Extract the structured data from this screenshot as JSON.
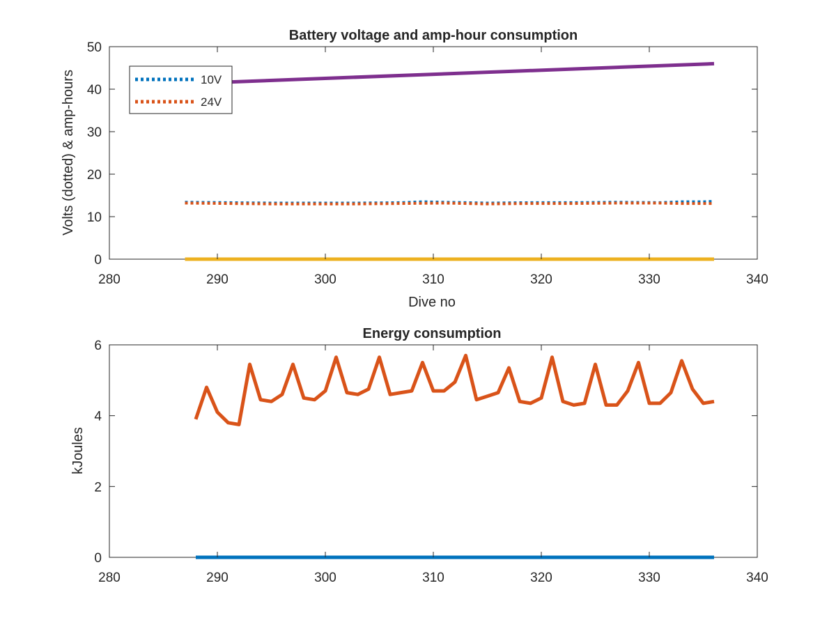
{
  "chart_data": [
    {
      "type": "line",
      "title": "Battery voltage and amp-hour consumption",
      "xlabel": "Dive no",
      "ylabel": "Volts (dotted) & amp-hours",
      "xlim": [
        280,
        340
      ],
      "ylim": [
        0,
        50
      ],
      "xticks": [
        "280",
        "290",
        "300",
        "310",
        "320",
        "330",
        "340"
      ],
      "yticks": [
        "0",
        "10",
        "20",
        "30",
        "40",
        "50"
      ],
      "grid": false,
      "legend_position": "top-left",
      "series": [
        {
          "name": "10V",
          "style": "dotted",
          "color": "#0072BD",
          "x": [
            287,
            291,
            295,
            299,
            303,
            307,
            309,
            311,
            315,
            319,
            323,
            327,
            331,
            333,
            335,
            336
          ],
          "y": [
            13.4,
            13.3,
            13.2,
            13.2,
            13.2,
            13.3,
            13.5,
            13.4,
            13.2,
            13.3,
            13.3,
            13.4,
            13.3,
            13.5,
            13.5,
            13.6
          ]
        },
        {
          "name": "24V",
          "style": "dotted",
          "color": "#D95319",
          "x": [
            287,
            291,
            295,
            299,
            303,
            307,
            311,
            315,
            319,
            323,
            327,
            331,
            333,
            336
          ],
          "y": [
            13.2,
            13.1,
            13.0,
            13.0,
            13.0,
            13.1,
            13.2,
            13.0,
            13.1,
            13.1,
            13.2,
            13.2,
            13.1,
            13.1
          ]
        },
        {
          "style": "solid",
          "color": "#EDB120",
          "x": [
            287,
            336
          ],
          "y": [
            0,
            0
          ]
        },
        {
          "style": "solid",
          "color": "#7E2F8E",
          "x": [
            287,
            336
          ],
          "y": [
            41.3,
            46.0
          ]
        }
      ]
    },
    {
      "type": "line",
      "title": "Energy consumption",
      "xlabel": "",
      "ylabel": "kJoules",
      "xlim": [
        280,
        340
      ],
      "ylim": [
        0,
        6
      ],
      "xticks": [
        "280",
        "290",
        "300",
        "310",
        "320",
        "330",
        "340"
      ],
      "yticks": [
        "0",
        "2",
        "4",
        "6"
      ],
      "grid": false,
      "series": [
        {
          "style": "solid",
          "color": "#0072BD",
          "x": [
            288,
            336
          ],
          "y": [
            0,
            0
          ]
        },
        {
          "style": "solid",
          "color": "#D95319",
          "x": [
            288,
            289,
            290,
            291,
            292,
            293,
            294,
            295,
            296,
            297,
            298,
            299,
            300,
            301,
            302,
            303,
            304,
            305,
            306,
            307,
            308,
            309,
            310,
            311,
            312,
            313,
            314,
            315,
            316,
            317,
            318,
            319,
            320,
            321,
            322,
            323,
            324,
            325,
            326,
            327,
            328,
            329,
            330,
            331,
            332,
            333,
            334,
            335,
            336
          ],
          "y": [
            3.9,
            4.8,
            4.1,
            3.8,
            3.75,
            5.45,
            4.45,
            4.4,
            4.6,
            5.45,
            4.5,
            4.45,
            4.7,
            5.65,
            4.65,
            4.6,
            4.75,
            5.65,
            4.6,
            4.65,
            4.7,
            5.5,
            4.7,
            4.7,
            4.95,
            5.7,
            4.45,
            4.55,
            4.65,
            5.35,
            4.4,
            4.35,
            4.5,
            5.65,
            4.4,
            4.3,
            4.35,
            5.45,
            4.3,
            4.3,
            4.7,
            5.5,
            4.35,
            4.35,
            4.65,
            5.55,
            4.75,
            4.35,
            4.4
          ]
        }
      ]
    }
  ]
}
